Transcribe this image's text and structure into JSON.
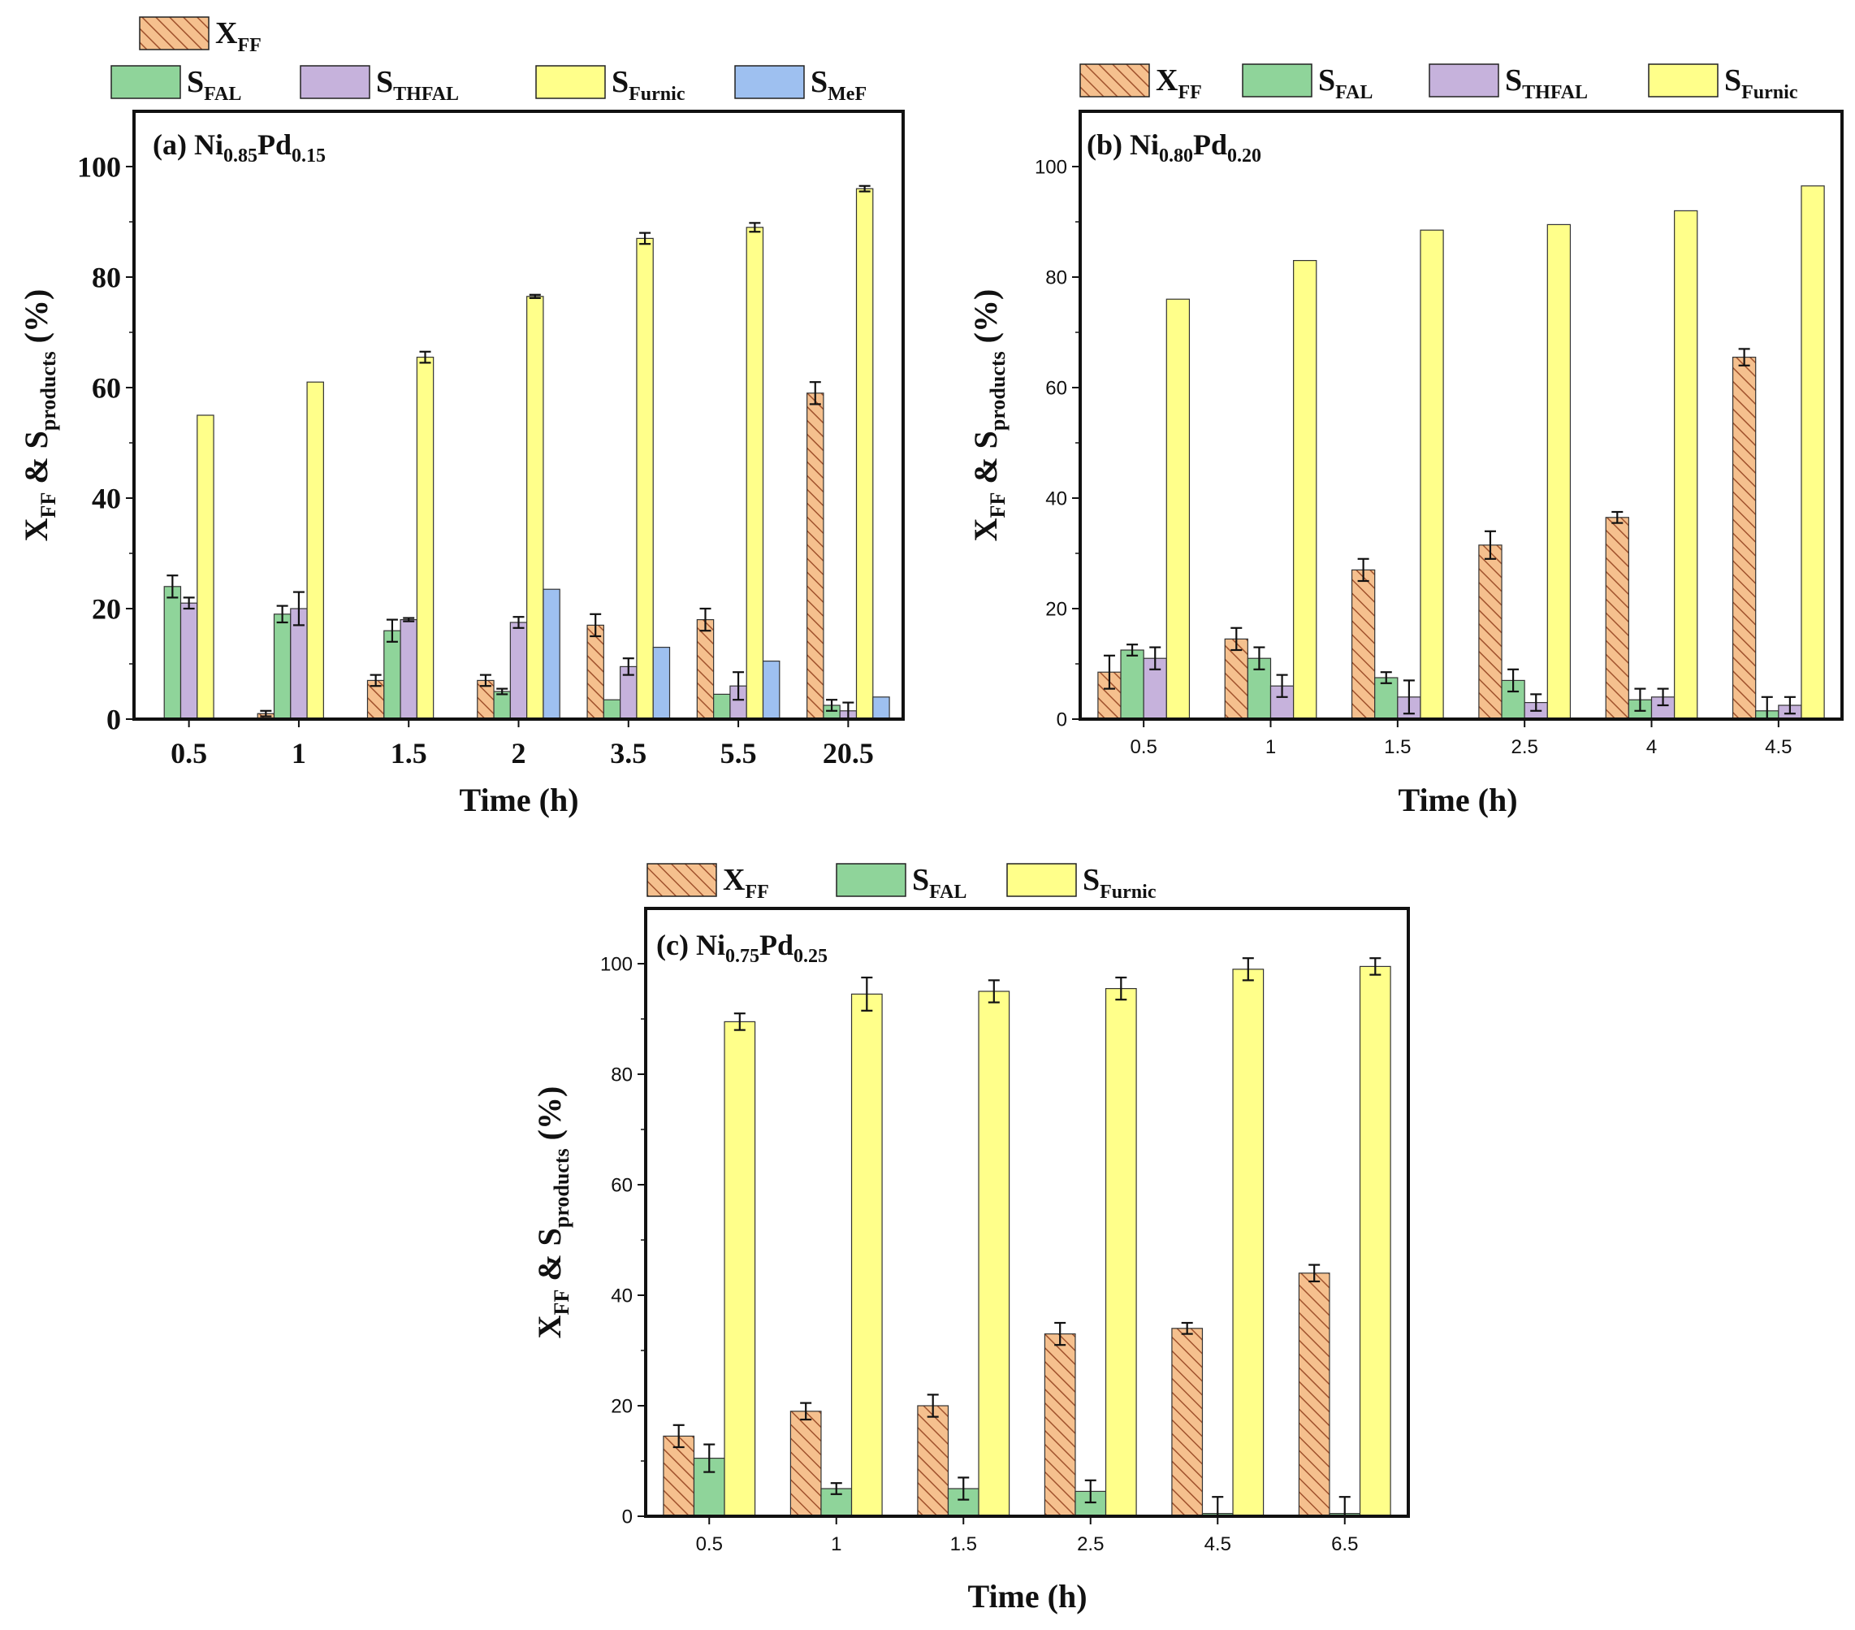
{
  "colors": {
    "X_FF": "#f5c08e",
    "X_FF_hatch": "#a0522d",
    "S_FAL": "#8fd49a",
    "S_THFAL": "#c6b2dc",
    "S_Furnic": "#ffff8a",
    "S_MeF": "#9ec0f0"
  },
  "legend_entries": {
    "X_FF": {
      "main": "X",
      "sub": "FF"
    },
    "S_FAL": {
      "main": "S",
      "sub": "FAL"
    },
    "S_THFAL": {
      "main": "S",
      "sub": "THFAL"
    },
    "S_Furnic": {
      "main": "S",
      "sub": "Furnic"
    },
    "S_MeF": {
      "main": "S",
      "sub": "MeF"
    }
  },
  "chart_data": [
    {
      "type": "bar",
      "panel": "a",
      "title_prefix": "(a) Ni",
      "title_sub1": "0.85",
      "title_mid": "Pd",
      "title_sub2": "0.15",
      "xlabel": "Time (h)",
      "ylabel_main": "X",
      "ylabel_sub1": "FF",
      "ylabel_mid": " & S",
      "ylabel_sub2": "products",
      "ylabel_end": " (%)",
      "ylim": [
        0,
        110
      ],
      "yticks": [
        "0",
        "20",
        "40",
        "60",
        "80",
        "100"
      ],
      "categories": [
        "0.5",
        "1",
        "1.5",
        "2",
        "3.5",
        "5.5",
        "20.5"
      ],
      "series": [
        {
          "name": "X_FF",
          "values": [
            0,
            1,
            7,
            7,
            17,
            18,
            59
          ],
          "errors": [
            0,
            0.5,
            1,
            1,
            2,
            2,
            2
          ]
        },
        {
          "name": "S_FAL",
          "values": [
            24,
            19,
            16,
            5,
            3.5,
            4.5,
            2.5
          ],
          "errors": [
            2,
            1.5,
            2,
            0.5,
            0,
            0,
            1
          ]
        },
        {
          "name": "S_THFAL",
          "values": [
            21,
            20,
            18,
            17.5,
            9.5,
            6,
            1.5
          ],
          "errors": [
            1,
            3,
            0.3,
            1,
            1.5,
            2.5,
            1.5
          ]
        },
        {
          "name": "S_Furnic",
          "values": [
            55,
            61,
            65.5,
            76.5,
            87,
            89,
            96
          ],
          "errors": [
            0,
            0,
            1,
            0.3,
            1,
            0.8,
            0.5
          ]
        },
        {
          "name": "S_MeF",
          "values": [
            0,
            0,
            0,
            23.5,
            13,
            10.5,
            4
          ],
          "errors": [
            0,
            0,
            0,
            0,
            0,
            0,
            0
          ]
        }
      ]
    },
    {
      "type": "bar",
      "panel": "b",
      "title_prefix": "(b) Ni",
      "title_sub1": "0.80",
      "title_mid": "Pd",
      "title_sub2": "0.20",
      "xlabel": "Time (h)",
      "ylabel_main": "X",
      "ylabel_sub1": "FF",
      "ylabel_mid": " & S",
      "ylabel_sub2": "products",
      "ylabel_end": " (%)",
      "ylim": [
        0,
        110
      ],
      "yticks": [
        "0",
        "20",
        "40",
        "60",
        "80",
        "100"
      ],
      "categories": [
        "0.5",
        "1",
        "1.5",
        "2.5",
        "4",
        "4.5"
      ],
      "series": [
        {
          "name": "X_FF",
          "values": [
            8.5,
            14.5,
            27,
            31.5,
            36.5,
            65.5
          ],
          "errors": [
            3,
            2,
            2,
            2.5,
            1,
            1.5
          ]
        },
        {
          "name": "S_FAL",
          "values": [
            12.5,
            11,
            7.5,
            7,
            3.5,
            1.5
          ],
          "errors": [
            1,
            2,
            1,
            2,
            2,
            2.5
          ]
        },
        {
          "name": "S_THFAL",
          "values": [
            11,
            6,
            4,
            3,
            4,
            2.5
          ],
          "errors": [
            2,
            2,
            3,
            1.5,
            1.5,
            1.5
          ]
        },
        {
          "name": "S_Furnic",
          "values": [
            76,
            83,
            88.5,
            89.5,
            92,
            96.5
          ],
          "errors": [
            0,
            0,
            0,
            0,
            0,
            0
          ]
        }
      ]
    },
    {
      "type": "bar",
      "panel": "c",
      "title_prefix": "(c) Ni",
      "title_sub1": "0.75",
      "title_mid": "Pd",
      "title_sub2": "0.25",
      "xlabel": "Time (h)",
      "ylabel_main": "X",
      "ylabel_sub1": "FF",
      "ylabel_mid": " & S",
      "ylabel_sub2": "products",
      "ylabel_end": " (%)",
      "ylim": [
        0,
        110
      ],
      "yticks": [
        "0",
        "20",
        "40",
        "60",
        "80",
        "100"
      ],
      "categories": [
        "0.5",
        "1",
        "1.5",
        "2.5",
        "4.5",
        "6.5"
      ],
      "series": [
        {
          "name": "X_FF",
          "values": [
            14.5,
            19,
            20,
            33,
            34,
            44
          ],
          "errors": [
            2,
            1.5,
            2,
            2,
            1,
            1.5
          ]
        },
        {
          "name": "S_FAL",
          "values": [
            10.5,
            5,
            5,
            4.5,
            0.5,
            0.5
          ],
          "errors": [
            2.5,
            1,
            2,
            2,
            3,
            3
          ]
        },
        {
          "name": "S_Furnic",
          "values": [
            89.5,
            94.5,
            95,
            95.5,
            99,
            99.5
          ],
          "errors": [
            1.5,
            3,
            2,
            2,
            2,
            1.5
          ]
        }
      ]
    }
  ]
}
